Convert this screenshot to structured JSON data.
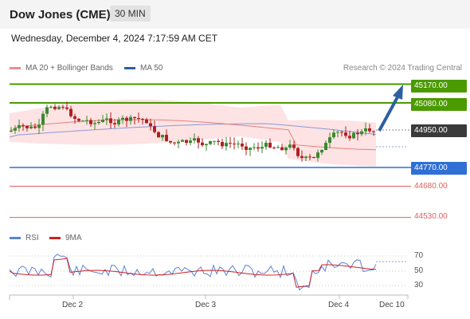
{
  "header": {
    "title": "Dow Jones (CME)",
    "timeframe": "30 MIN"
  },
  "datetime": "Wednesday, December 4, 2024 7:17:59 AM CET",
  "legend": {
    "ma20": "MA 20 + Bollinger Bands",
    "ma50": "MA 50",
    "copyright": "Research © 2024 Trading Central"
  },
  "levels": {
    "r2": "45170.00",
    "r1": "45080.00",
    "current": "44950.00",
    "s1": "44770.00",
    "s2": "44680.00",
    "s3": "44530.00"
  },
  "rsi": {
    "label": "RSI",
    "ma_label": "9MA",
    "ticks": [
      "70",
      "50",
      "30"
    ]
  },
  "x_axis": {
    "labels": [
      "Dec 2",
      "Dec 3",
      "Dec 4",
      "Dec 10"
    ]
  },
  "colors": {
    "resistance": "#4a9a00",
    "support": "#2f6fd6",
    "minor": "#e06060",
    "current": "#3a3a3a",
    "ma20": "#f08c8c",
    "ma50": "#2e5fa0",
    "bullish": "#3a8a2e",
    "bearish": "#b02020",
    "rsi": "#5b82d8",
    "rsi_ma": "#d02020",
    "arrow": "#2e5fa0"
  },
  "chart_data": {
    "type": "candlestick",
    "x_ticks": [
      "Dec 2",
      "Dec 3",
      "Dec 4",
      "Dec 10"
    ],
    "y_levels": [
      45170,
      45080,
      44950,
      44770,
      44680,
      44530
    ],
    "series": [
      {
        "name": "MA 20 + Bollinger Bands"
      },
      {
        "name": "MA 50"
      }
    ],
    "rsi_ticks": [
      70,
      50,
      30
    ],
    "last_price": 44950
  }
}
